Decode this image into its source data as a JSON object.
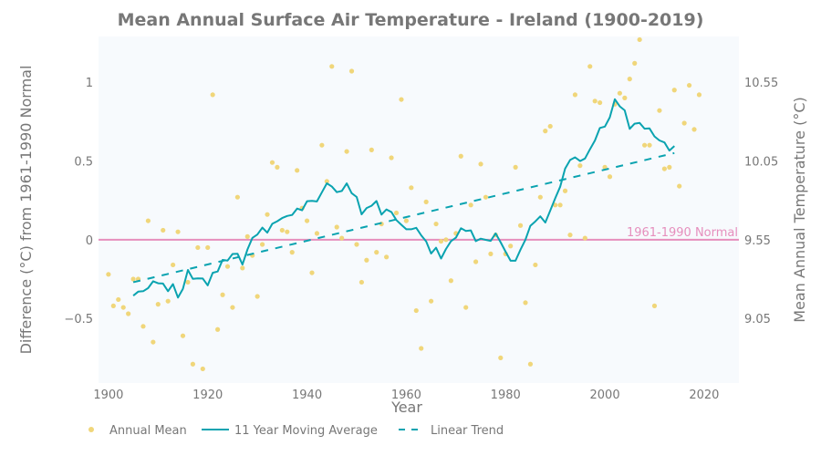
{
  "chart_data": {
    "type": "scatter",
    "title": "Mean Annual Surface Air Temperature - Ireland (1900-2019)",
    "xlabel": "Year",
    "ylabel": "Difference (°C) from 1961-1990 Normal",
    "y2label": "Mean Annual Temperature (°C)",
    "xlim": [
      1898,
      2027
    ],
    "ylim": [
      -0.91,
      1.29
    ],
    "x_ticks": [
      1900,
      1920,
      1940,
      1960,
      1980,
      2000,
      2020
    ],
    "y_ticks": [
      -0.5,
      0,
      0.5,
      1
    ],
    "y_tick_labels": [
      "−0.5",
      "0",
      "0.5",
      "1"
    ],
    "y2_ticks": [
      9.05,
      9.55,
      10.05,
      10.55
    ],
    "normal_value": 9.55,
    "normal_label": "1961-1990 Normal",
    "grid": false,
    "legend_placement": "bottom",
    "colors": {
      "annual": "#f0d67a",
      "moving": "#0aa3b0",
      "trend": "#0aa3b0",
      "normal": "#e68fbd",
      "plot_bg": "#f7fafd",
      "text": "#777777"
    },
    "series": [
      {
        "name": "Annual Mean",
        "kind": "markers",
        "x": [
          1900,
          1901,
          1902,
          1903,
          1904,
          1905,
          1906,
          1907,
          1908,
          1909,
          1910,
          1911,
          1912,
          1913,
          1914,
          1915,
          1916,
          1917,
          1918,
          1919,
          1920,
          1921,
          1922,
          1923,
          1924,
          1925,
          1926,
          1927,
          1928,
          1929,
          1930,
          1931,
          1932,
          1933,
          1934,
          1935,
          1936,
          1937,
          1938,
          1939,
          1940,
          1941,
          1942,
          1943,
          1944,
          1945,
          1946,
          1947,
          1948,
          1949,
          1950,
          1951,
          1952,
          1953,
          1954,
          1955,
          1956,
          1957,
          1958,
          1959,
          1960,
          1961,
          1962,
          1963,
          1964,
          1965,
          1966,
          1967,
          1968,
          1969,
          1970,
          1971,
          1972,
          1973,
          1974,
          1975,
          1976,
          1977,
          1978,
          1979,
          1980,
          1981,
          1982,
          1983,
          1984,
          1985,
          1986,
          1987,
          1988,
          1989,
          1990,
          1991,
          1992,
          1993,
          1994,
          1995,
          1996,
          1997,
          1998,
          1999,
          2000,
          2001,
          2002,
          2003,
          2004,
          2005,
          2006,
          2007,
          2008,
          2009,
          2010,
          2011,
          2012,
          2013,
          2014,
          2015,
          2016,
          2017,
          2018,
          2019
        ],
        "y": [
          -0.22,
          -0.42,
          -0.38,
          -0.43,
          -0.47,
          -0.25,
          -0.25,
          -0.55,
          0.12,
          -0.65,
          -0.41,
          0.06,
          -0.39,
          -0.16,
          0.05,
          -0.61,
          -0.27,
          -0.79,
          -0.05,
          -0.82,
          -0.05,
          0.92,
          -0.57,
          -0.35,
          -0.17,
          -0.43,
          0.27,
          -0.18,
          0.02,
          -0.1,
          -0.36,
          -0.03,
          0.16,
          0.49,
          0.46,
          0.06,
          0.05,
          -0.08,
          0.44,
          0.2,
          0.12,
          -0.21,
          0.04,
          0.6,
          0.37,
          1.1,
          0.08,
          0.01,
          0.56,
          1.07,
          -0.03,
          -0.27,
          -0.13,
          0.57,
          -0.08,
          0.1,
          -0.11,
          0.52,
          0.17,
          0.89,
          0.12,
          0.33,
          -0.45,
          -0.69,
          0.24,
          -0.39,
          0.1,
          -0.01,
          0.0,
          -0.26,
          0.04,
          0.53,
          -0.43,
          0.22,
          -0.14,
          0.48,
          0.27,
          -0.09,
          0.03,
          -0.75,
          -0.09,
          -0.04,
          0.46,
          0.09,
          -0.4,
          -0.79,
          -0.16,
          0.27,
          0.69,
          0.72,
          0.22,
          0.22,
          0.31,
          0.03,
          0.92,
          0.47,
          0.01,
          1.1,
          0.88,
          0.87,
          0.46,
          0.4,
          0.86,
          0.93,
          0.9,
          1.02,
          1.12,
          1.27,
          0.6,
          0.6,
          -0.42,
          0.82,
          0.45,
          0.46,
          0.95,
          0.34,
          0.74,
          0.98,
          0.7,
          0.92
        ]
      },
      {
        "name": "11 Year Moving Average",
        "kind": "line",
        "window": 11
      },
      {
        "name": "Linear Trend",
        "kind": "dashed",
        "x": [
          1905,
          2014
        ],
        "y": [
          -0.27,
          0.55
        ]
      }
    ]
  }
}
